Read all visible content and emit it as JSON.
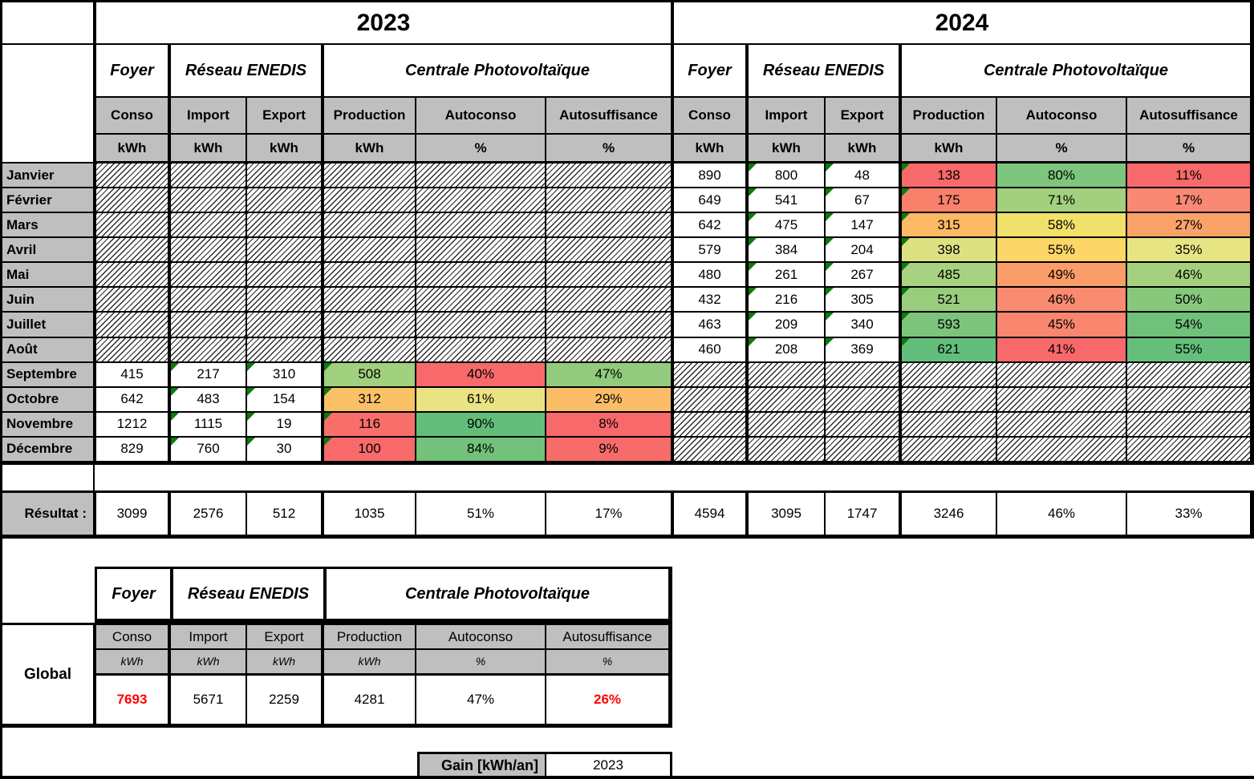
{
  "table": {
    "corner": "",
    "years": [
      "2023",
      "2024"
    ],
    "groups": [
      "Foyer",
      "Réseau ENEDIS",
      "Centrale Photovoltaïque"
    ],
    "columns": [
      "Conso",
      "Import",
      "Export",
      "Production",
      "Autoconso",
      "Autosuffisance"
    ],
    "units": [
      "kWh",
      "kWh",
      "kWh",
      "kWh",
      "%",
      "%"
    ],
    "rows": [
      {
        "month": "Janvier",
        "y2023": null,
        "y2024": {
          "conso": "890",
          "import": "800",
          "export": "48",
          "production": {
            "v": "138",
            "bg": "#F8696B"
          },
          "autoconso": {
            "v": "80%",
            "bg": "#7EC67D"
          },
          "autosuffisance": {
            "v": "11%",
            "bg": "#F8696B"
          }
        }
      },
      {
        "month": "Février",
        "y2023": null,
        "y2024": {
          "conso": "649",
          "import": "541",
          "export": "67",
          "production": {
            "v": "175",
            "bg": "#F9806A"
          },
          "autoconso": {
            "v": "71%",
            "bg": "#A2D07E"
          },
          "autosuffisance": {
            "v": "17%",
            "bg": "#F98974"
          }
        }
      },
      {
        "month": "Mars",
        "y2023": null,
        "y2024": {
          "conso": "642",
          "import": "475",
          "export": "147",
          "production": {
            "v": "315",
            "bg": "#FBBA63"
          },
          "autoconso": {
            "v": "58%",
            "bg": "#F1E16A"
          },
          "autosuffisance": {
            "v": "27%",
            "bg": "#FAA368"
          }
        }
      },
      {
        "month": "Avril",
        "y2023": null,
        "y2024": {
          "conso": "579",
          "import": "384",
          "export": "204",
          "production": {
            "v": "398",
            "bg": "#DDE182"
          },
          "autoconso": {
            "v": "55%",
            "bg": "#FCD666"
          },
          "autosuffisance": {
            "v": "35%",
            "bg": "#E7E583"
          }
        }
      },
      {
        "month": "Mai",
        "y2023": null,
        "y2024": {
          "conso": "480",
          "import": "261",
          "export": "267",
          "production": {
            "v": "485",
            "bg": "#A7D27F"
          },
          "autoconso": {
            "v": "49%",
            "bg": "#FA9D69"
          },
          "autosuffisance": {
            "v": "46%",
            "bg": "#A5D17F"
          }
        }
      },
      {
        "month": "Juin",
        "y2023": null,
        "y2024": {
          "conso": "432",
          "import": "216",
          "export": "305",
          "production": {
            "v": "521",
            "bg": "#98CD7E"
          },
          "autoconso": {
            "v": "46%",
            "bg": "#F98B70"
          },
          "autosuffisance": {
            "v": "50%",
            "bg": "#87C87D"
          }
        }
      },
      {
        "month": "Juillet",
        "y2023": null,
        "y2024": {
          "conso": "463",
          "import": "209",
          "export": "340",
          "production": {
            "v": "593",
            "bg": "#7CC47C"
          },
          "autoconso": {
            "v": "45%",
            "bg": "#F9866F"
          },
          "autosuffisance": {
            "v": "54%",
            "bg": "#70C17B"
          }
        }
      },
      {
        "month": "Août",
        "y2023": null,
        "y2024": {
          "conso": "460",
          "import": "208",
          "export": "369",
          "production": {
            "v": "621",
            "bg": "#63BE7B"
          },
          "autoconso": {
            "v": "41%",
            "bg": "#F8696B"
          },
          "autosuffisance": {
            "v": "55%",
            "bg": "#65BF7B"
          }
        }
      },
      {
        "month": "Septembre",
        "y2023": {
          "conso": "415",
          "import": "217",
          "export": "310",
          "production": {
            "v": "508",
            "bg": "#A1D07E"
          },
          "autoconso": {
            "v": "40%",
            "bg": "#F8696B"
          },
          "autosuffisance": {
            "v": "47%",
            "bg": "#92CB7D"
          }
        },
        "y2024": null
      },
      {
        "month": "Octobre",
        "y2023": {
          "conso": "642",
          "import": "483",
          "export": "154",
          "production": {
            "v": "312",
            "bg": "#FBC167"
          },
          "autoconso": {
            "v": "61%",
            "bg": "#E9E383"
          },
          "autosuffisance": {
            "v": "29%",
            "bg": "#FBBD68"
          }
        },
        "y2024": null
      },
      {
        "month": "Novembre",
        "y2023": {
          "conso": "1212",
          "import": "1115",
          "export": "19",
          "production": {
            "v": "116",
            "bg": "#F86E6B"
          },
          "autoconso": {
            "v": "90%",
            "bg": "#63BE7B"
          },
          "autosuffisance": {
            "v": "8%",
            "bg": "#F8696B"
          }
        },
        "y2024": null
      },
      {
        "month": "Décembre",
        "y2023": {
          "conso": "829",
          "import": "760",
          "export": "30",
          "production": {
            "v": "100",
            "bg": "#F8696B"
          },
          "autoconso": {
            "v": "84%",
            "bg": "#72C27C"
          },
          "autosuffisance": {
            "v": "9%",
            "bg": "#F86B6B"
          }
        },
        "y2024": null
      }
    ]
  },
  "resultat": {
    "label": "Résultat :",
    "y2023": [
      "3099",
      "2576",
      "512",
      "1035",
      "51%",
      "17%"
    ],
    "y2024": [
      "4594",
      "3095",
      "1747",
      "3246",
      "46%",
      "33%"
    ]
  },
  "global": {
    "label": "Global",
    "groups": [
      "Foyer",
      "Réseau ENEDIS",
      "Centrale Photovoltaïque"
    ],
    "columns": [
      "Conso",
      "Import",
      "Export",
      "Production",
      "Autoconso",
      "Autosuffisance"
    ],
    "units": [
      "kWh",
      "kWh",
      "kWh",
      "kWh",
      "%",
      "%"
    ],
    "values": [
      {
        "v": "7693",
        "red": true
      },
      {
        "v": "5671",
        "red": false
      },
      {
        "v": "2259",
        "red": false
      },
      {
        "v": "4281",
        "red": false
      },
      {
        "v": "47%",
        "red": false
      },
      {
        "v": "26%",
        "red": true
      }
    ]
  },
  "gain": {
    "label": "Gain [kWh/an]",
    "value": "2023"
  },
  "colors": {
    "header_gray": "#BFBFBF",
    "red_text": "#FF0000",
    "triangle_green": "#0B7B0B",
    "border": "#000000",
    "scale_min_red": "#F8696B",
    "scale_mid_yellow": "#FFEB84",
    "scale_max_green": "#63BE7B"
  }
}
